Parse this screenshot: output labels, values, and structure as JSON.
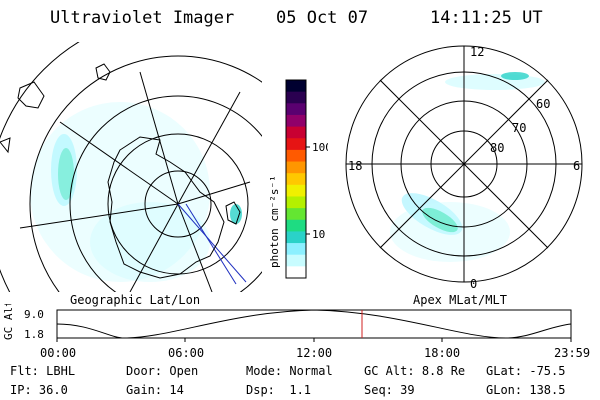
{
  "header": {
    "title": "Ultraviolet Imager",
    "date": "05 Oct 07",
    "time": "14:11:25 UT"
  },
  "left_panel": {
    "label": "Geographic Lat/Lon"
  },
  "right_panel": {
    "label": "Apex MLat/MLT",
    "mlt_labels": {
      "top": "12",
      "left": "18",
      "right": "6",
      "bottom": "0"
    },
    "lat_labels": [
      "60",
      "70",
      "80"
    ]
  },
  "colorbar": {
    "unit_label": "photon cm⁻²s⁻¹",
    "ticks": [
      "100",
      "10"
    ],
    "colors": [
      "#000030",
      "#2a0050",
      "#5a0070",
      "#90006a",
      "#c80032",
      "#e61414",
      "#ff5a00",
      "#ff9600",
      "#ffc800",
      "#f0f000",
      "#b4f000",
      "#64e632",
      "#1edc82",
      "#2ad2c8",
      "#8cf0ff",
      "#c8fcff",
      "#ffffff"
    ]
  },
  "timeline": {
    "axis_label": "GC Alt",
    "y_top": "9.0",
    "y_bottom": "1.8",
    "x_ticks": [
      "00:00",
      "06:00",
      "12:00",
      "18:00",
      "23:59"
    ],
    "marker_color": "#d22020"
  },
  "info": {
    "filter": {
      "label": "Flt:",
      "value": "LBHL"
    },
    "ip": {
      "label": "IP:",
      "value": "36.0"
    },
    "door": {
      "label": "Door:",
      "value": "Open"
    },
    "gain": {
      "label": "Gain:",
      "value": "14"
    },
    "mode": {
      "label": "Mode:",
      "value": "Normal"
    },
    "dsp": {
      "label": "Dsp:",
      "value": "1.1"
    },
    "gcalt": {
      "label": "GC Alt:",
      "value": "8.8 Re"
    },
    "seq": {
      "label": "Seq:",
      "value": "39"
    },
    "glat": {
      "label": "GLat:",
      "value": "-75.5"
    },
    "glon": {
      "label": "GLon:",
      "value": "138.5"
    }
  }
}
